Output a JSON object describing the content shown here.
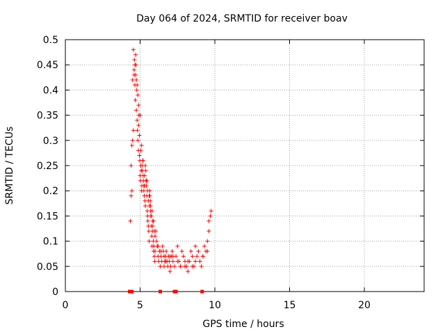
{
  "chart_data": {
    "type": "scatter",
    "title": "Day 064 of 2024, SRMTID for receiver boav",
    "xlabel": "GPS time / hours",
    "ylabel": "SRMTID / TECUs",
    "xlim": [
      0,
      24
    ],
    "ylim": [
      0,
      0.5
    ],
    "xticks": [
      0,
      5,
      10,
      15,
      20
    ],
    "yticks": [
      0,
      0.05,
      0.1,
      0.15,
      0.2,
      0.25,
      0.3,
      0.35,
      0.4,
      0.45,
      0.5
    ],
    "xtick_labels": [
      "0",
      "5",
      "10",
      "15",
      "20"
    ],
    "ytick_labels": [
      "0",
      "0.05",
      "0.1",
      "0.15",
      "0.2",
      "0.25",
      "0.3",
      "0.35",
      "0.4",
      "0.45",
      "0.5"
    ],
    "grid": true,
    "marker": "+",
    "color": "#ff0000",
    "series": [
      {
        "name": "SRMTID",
        "x": [
          4.35,
          4.4,
          4.45,
          4.5,
          4.55,
          4.6,
          4.62,
          4.65,
          4.68,
          4.7,
          4.72,
          4.75,
          4.78,
          4.8,
          4.82,
          4.85,
          4.88,
          4.9,
          4.92,
          4.95,
          4.98,
          5.0,
          5.02,
          5.05,
          5.08,
          5.1,
          5.12,
          5.15,
          5.18,
          5.2,
          5.22,
          5.25,
          5.28,
          5.3,
          5.32,
          5.35,
          5.38,
          5.4,
          5.42,
          5.45,
          5.48,
          5.5,
          5.52,
          5.55,
          5.58,
          5.6,
          5.62,
          5.65,
          5.68,
          5.7,
          5.72,
          5.75,
          5.78,
          5.8,
          5.82,
          5.85,
          5.88,
          5.9,
          5.92,
          5.95,
          5.98,
          6.0,
          6.05,
          6.1,
          6.15,
          6.2,
          6.25,
          6.3,
          6.35,
          6.4,
          6.45,
          6.5,
          6.55,
          6.6,
          6.65,
          6.7,
          6.75,
          6.8,
          6.85,
          6.9,
          6.95,
          7.0,
          7.05,
          7.1,
          7.15,
          7.2,
          7.3,
          7.4,
          7.5,
          7.6,
          7.7,
          7.8,
          7.9,
          8.0,
          8.1,
          8.2,
          8.3,
          8.4,
          8.5,
          8.6,
          8.7,
          8.8,
          8.9,
          9.0,
          9.1,
          9.2,
          9.3,
          9.4,
          9.5,
          9.6,
          9.7,
          9.75,
          4.4,
          4.5,
          4.6,
          4.7,
          4.8,
          4.9,
          5.0,
          5.1,
          5.2,
          5.3,
          5.4,
          5.5,
          5.6,
          5.7,
          5.8,
          5.9,
          6.0,
          6.2,
          6.4,
          6.6,
          6.8,
          7.0,
          7.5,
          8.0,
          8.5,
          9.0,
          9.5,
          4.45,
          4.55,
          4.65,
          4.75,
          4.85,
          4.95,
          5.05,
          5.15,
          5.25,
          5.35,
          5.45,
          5.55,
          5.65,
          5.75,
          5.85,
          5.95,
          6.3,
          6.7,
          7.2,
          7.7,
          8.2,
          8.7,
          9.2,
          9.6
        ],
        "y": [
          0.14,
          0.25,
          0.29,
          0.42,
          0.48,
          0.44,
          0.46,
          0.41,
          0.38,
          0.43,
          0.45,
          0.36,
          0.4,
          0.34,
          0.32,
          0.3,
          0.28,
          0.33,
          0.35,
          0.27,
          0.26,
          0.23,
          0.22,
          0.25,
          0.24,
          0.2,
          0.21,
          0.25,
          0.26,
          0.23,
          0.22,
          0.2,
          0.19,
          0.21,
          0.18,
          0.17,
          0.24,
          0.22,
          0.21,
          0.19,
          0.16,
          0.15,
          0.14,
          0.13,
          0.12,
          0.1,
          0.17,
          0.19,
          0.18,
          0.16,
          0.15,
          0.13,
          0.11,
          0.09,
          0.12,
          0.14,
          0.1,
          0.08,
          0.09,
          0.07,
          0.06,
          0.08,
          0.12,
          0.1,
          0.09,
          0.07,
          0.06,
          0.08,
          0.05,
          0.07,
          0.06,
          0.09,
          0.08,
          0.05,
          0.06,
          0.07,
          0.08,
          0.06,
          0.05,
          0.07,
          0.06,
          0.04,
          0.05,
          0.07,
          0.08,
          0.06,
          0.05,
          0.07,
          0.09,
          0.06,
          0.05,
          0.08,
          0.07,
          0.06,
          0.05,
          0.04,
          0.06,
          0.08,
          0.07,
          0.05,
          0.06,
          0.07,
          0.08,
          0.06,
          0.05,
          0.07,
          0.09,
          0.08,
          0.1,
          0.14,
          0.15,
          0.16,
          0.19,
          0.3,
          0.43,
          0.47,
          0.41,
          0.37,
          0.35,
          0.29,
          0.26,
          0.23,
          0.22,
          0.2,
          0.19,
          0.17,
          0.16,
          0.14,
          0.11,
          0.09,
          0.08,
          0.07,
          0.06,
          0.07,
          0.06,
          0.05,
          0.05,
          0.06,
          0.08,
          0.2,
          0.32,
          0.45,
          0.42,
          0.39,
          0.31,
          0.28,
          0.24,
          0.21,
          0.25,
          0.22,
          0.18,
          0.2,
          0.15,
          0.13,
          0.12,
          0.08,
          0.06,
          0.07,
          0.05,
          0.06,
          0.09,
          0.07,
          0.12
        ]
      }
    ],
    "baseline_markers_x": [
      4.3,
      4.45,
      6.35,
      7.3,
      7.4,
      9.15
    ]
  }
}
